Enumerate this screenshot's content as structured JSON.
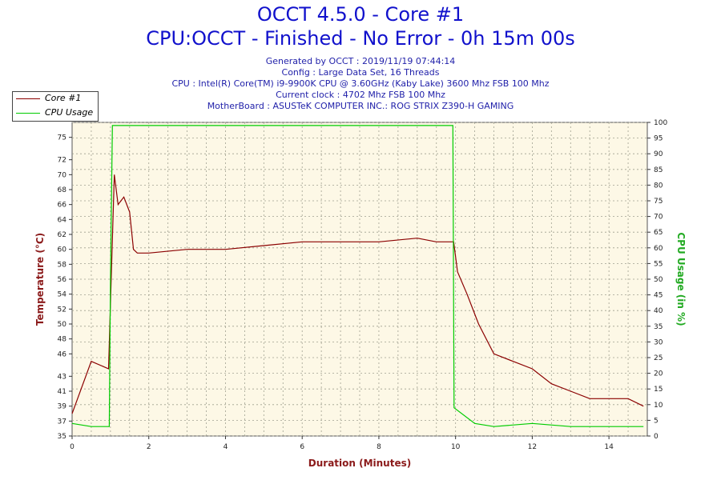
{
  "header": {
    "title": "OCCT 4.5.0 - Core #1",
    "subtitle": "CPU:OCCT - Finished - No Error - 0h 15m 00s",
    "info_lines": [
      "Generated by OCCT : 2019/11/19 07:44:14",
      "Config : Large Data Set, 16 Threads",
      "CPU : Intel(R) Core(TM) i9-9900K CPU @ 3.60GHz (Kaby Lake) 3600 Mhz FSB 100 Mhz",
      "Current clock : 4702 Mhz FSB 100 Mhz",
      "MotherBoard : ASUSTeK COMPUTER INC.: ROG STRIX Z390-H GAMING"
    ]
  },
  "legend": {
    "items": [
      {
        "label": "Core #1",
        "color": "#8b0000"
      },
      {
        "label": "CPU Usage",
        "color": "#00cc00"
      }
    ]
  },
  "colors": {
    "plot_bg": "#fdf8e6",
    "grid": "#a0a090",
    "temperature": "#8b0000",
    "usage": "#00cc00",
    "axis_label_left": "#8b1a1a",
    "axis_label_right": "#22aa22",
    "title": "#1111cc"
  },
  "chart_data": {
    "type": "line",
    "xlabel": "Duration (Minutes)",
    "ylabel": "Temperature (°C)",
    "y2label": "CPU Usage (in %)",
    "xlim": [
      0,
      15
    ],
    "ylim": [
      35,
      77
    ],
    "y2lim": [
      0,
      100
    ],
    "x_ticks": [
      0,
      2,
      4,
      6,
      8,
      10,
      12,
      14
    ],
    "y_ticks": [
      35,
      37,
      39,
      41,
      43,
      46,
      48,
      50,
      52,
      54,
      56,
      58,
      60,
      62,
      64,
      66,
      68,
      70,
      72,
      75
    ],
    "y2_ticks": [
      0,
      5,
      10,
      15,
      20,
      25,
      30,
      35,
      40,
      45,
      50,
      55,
      60,
      65,
      70,
      75,
      80,
      85,
      90,
      95,
      100
    ],
    "grid": true,
    "legend_position": "top-left",
    "series": [
      {
        "name": "Core #1",
        "axis": "left",
        "x": [
          0,
          0.5,
          0.95,
          1.02,
          1.1,
          1.2,
          1.35,
          1.5,
          1.6,
          1.7,
          2,
          3,
          4,
          5,
          6,
          7,
          8,
          9,
          9.5,
          9.95,
          10.05,
          10.3,
          10.6,
          11,
          11.5,
          12,
          12.5,
          13,
          13.5,
          14,
          14.5,
          14.9
        ],
        "y": [
          38,
          45,
          44,
          56,
          70,
          66,
          67,
          65,
          60,
          59.5,
          59.5,
          60,
          60,
          60.5,
          61,
          61,
          61,
          61.5,
          61,
          61,
          57,
          54,
          50,
          46,
          45,
          44,
          42,
          41,
          40,
          40,
          40,
          39
        ]
      },
      {
        "name": "CPU Usage",
        "axis": "right",
        "x": [
          0,
          0.5,
          0.97,
          1.0,
          1.05,
          5,
          9.93,
          9.96,
          10.5,
          11,
          12,
          13,
          14,
          14.9
        ],
        "y": [
          4,
          3,
          3,
          50,
          99,
          99,
          99,
          9,
          4,
          3,
          4,
          3,
          3,
          3
        ]
      }
    ]
  }
}
